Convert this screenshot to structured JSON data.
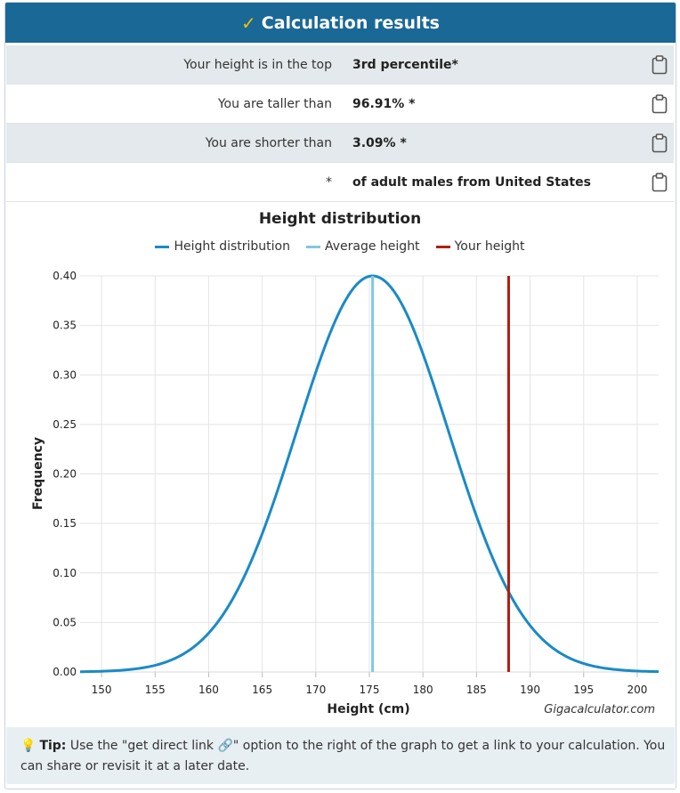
{
  "header": {
    "title": "Calculation results",
    "check_icon": "check-icon"
  },
  "results": [
    {
      "label": "Your height is in the top",
      "value": "3rd percentile*"
    },
    {
      "label": "You are taller than",
      "value": "96.91% *"
    },
    {
      "label": "You are shorter than",
      "value": "3.09% *"
    },
    {
      "label": "*",
      "value": "of adult males from United States"
    }
  ],
  "chart": {
    "legend": [
      "Height distribution",
      "Average height",
      "Your height"
    ]
  },
  "chart_data": {
    "type": "line",
    "title": "Height distribution",
    "xlabel": "Height (cm)",
    "ylabel": "Frequency",
    "xlim": [
      148,
      202
    ],
    "ylim": [
      0,
      0.4
    ],
    "xticks": [
      "150",
      "155",
      "160",
      "165",
      "170",
      "175",
      "180",
      "185",
      "190",
      "195",
      "200"
    ],
    "yticks": [
      "0.00",
      "0.05",
      "0.10",
      "0.15",
      "0.20",
      "0.25",
      "0.30",
      "0.35",
      "0.40"
    ],
    "distribution": {
      "mean": 175.3,
      "sd": 7.1,
      "peak": 0.4
    },
    "average_height": 175.3,
    "your_height": 188.0,
    "colors": {
      "distribution": "#1a8ac7",
      "average": "#7ec8e3",
      "yours": "#b01e10"
    },
    "watermark": "Gigacalculator.com"
  },
  "tip": {
    "bold": "Tip:",
    "text1": " Use the \"get direct link ",
    "text2": "\" option to the right of the graph to get a link to your calculation. You can share or revisit it at a later date."
  }
}
